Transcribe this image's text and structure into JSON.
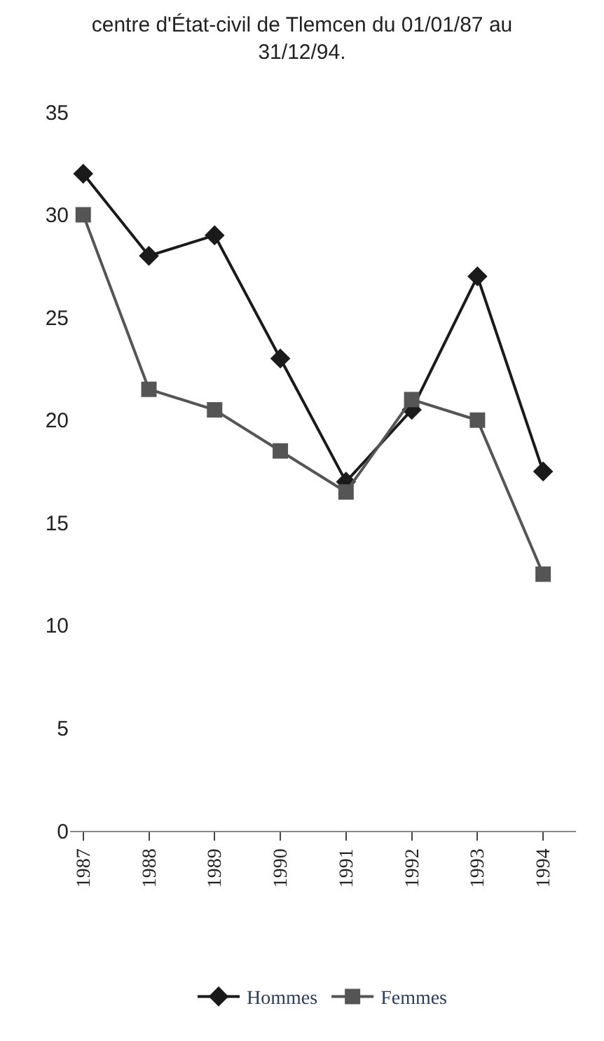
{
  "chart_data": {
    "type": "line",
    "title": "centre d'État-civil de Tlemcen du 01/01/87 au\n31/12/94.",
    "categories": [
      "1987",
      "1988",
      "1989",
      "1990",
      "1991",
      "1992",
      "1993",
      "1994"
    ],
    "series": [
      {
        "name": "Hommes",
        "color": "#1a1a1a",
        "marker": "diamond",
        "values": [
          32,
          28,
          29,
          23,
          17,
          20.5,
          27,
          17.5
        ]
      },
      {
        "name": "Femmes",
        "color": "#555555",
        "marker": "square",
        "values": [
          30,
          21.5,
          20.5,
          18.5,
          16.5,
          21,
          20,
          12.5
        ]
      }
    ],
    "ylim": [
      0,
      35
    ],
    "yticks": [
      0,
      5,
      10,
      15,
      20,
      25,
      30,
      35
    ],
    "legend": "right",
    "line_style": "solid"
  }
}
